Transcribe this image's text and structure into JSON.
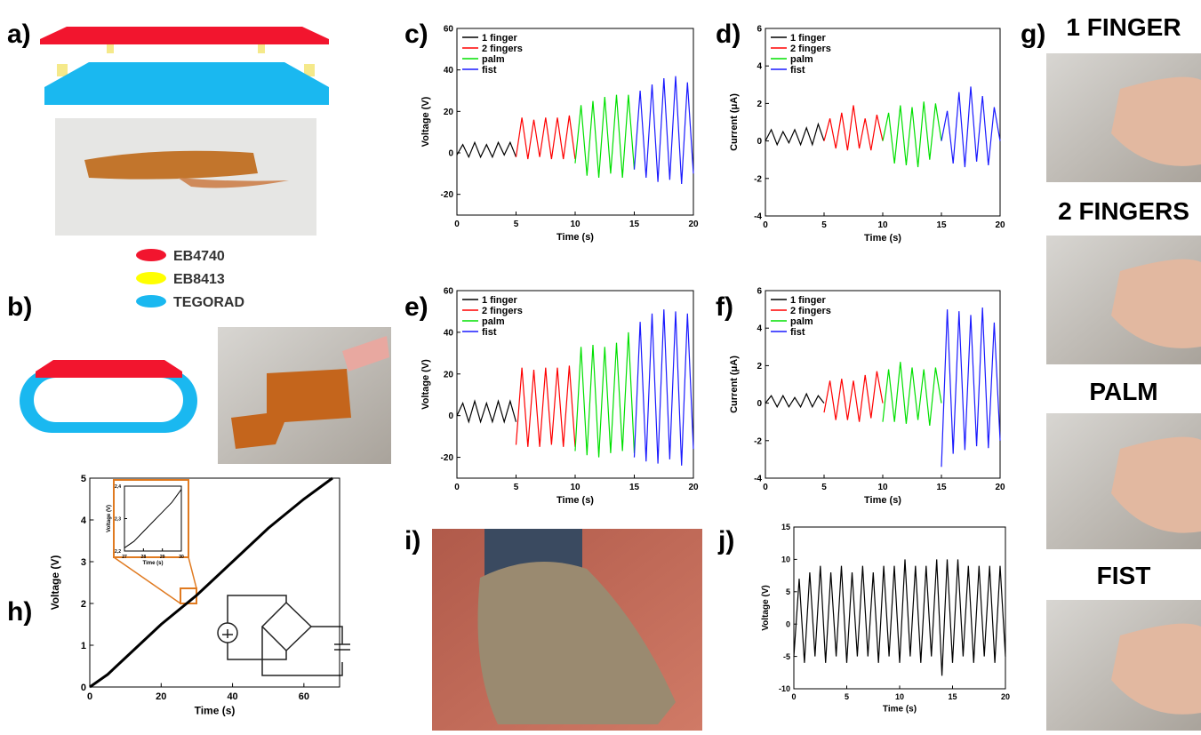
{
  "panels": {
    "a": "a)",
    "b": "b)",
    "g": "g)",
    "i": "i)"
  },
  "materials": [
    {
      "name": "EB4740",
      "color": "#f2152e"
    },
    {
      "name": "EB8413",
      "color": "#ffff00"
    },
    {
      "name": "TEGORAD",
      "color": "#1ab8f0"
    }
  ],
  "photo_labels": [
    "1 FINGER",
    "2 FINGERS",
    "PALM",
    "FIST"
  ],
  "chart_data": [
    {
      "type": "line",
      "panel": "c)",
      "xlabel": "Time (s)",
      "ylabel": "Voltage (V)",
      "xlim": [
        0,
        20
      ],
      "ylim": [
        -30,
        60
      ],
      "xticks": [
        0,
        5,
        10,
        15,
        20
      ],
      "yticks": [
        -20,
        0,
        20,
        40,
        60
      ],
      "legend": "upper left",
      "series": [
        {
          "name": "1 finger",
          "color": "#000000",
          "x": [
            0,
            0.5,
            1,
            1.5,
            2,
            2.5,
            3,
            3.5,
            4,
            4.5,
            5
          ],
          "values": [
            -1,
            4,
            -2,
            5,
            -2,
            4,
            -2,
            5,
            -1,
            5,
            -2
          ]
        },
        {
          "name": "2 fingers",
          "color": "#ff0000",
          "x": [
            5,
            5.5,
            6,
            6.5,
            7,
            7.5,
            8,
            8.5,
            9,
            9.5,
            10
          ],
          "values": [
            -2,
            17,
            -3,
            16,
            -2,
            17,
            -3,
            17,
            -3,
            18,
            -3
          ]
        },
        {
          "name": "palm",
          "color": "#00e000",
          "x": [
            10,
            10.5,
            11,
            11.5,
            12,
            12.5,
            13,
            13.5,
            14,
            14.5,
            15
          ],
          "values": [
            -5,
            23,
            -11,
            25,
            -12,
            27,
            -10,
            28,
            -12,
            28,
            -8
          ]
        },
        {
          "name": "fist",
          "color": "#1a1aff",
          "x": [
            15,
            15.5,
            16,
            16.5,
            17,
            17.5,
            18,
            18.5,
            19,
            19.5,
            20
          ],
          "values": [
            -8,
            30,
            -12,
            33,
            -14,
            36,
            -13,
            37,
            -15,
            34,
            -10
          ]
        }
      ]
    },
    {
      "type": "line",
      "panel": "d)",
      "xlabel": "Time (s)",
      "ylabel": "Current (μA)",
      "xlim": [
        0,
        20
      ],
      "ylim": [
        -4,
        6
      ],
      "xticks": [
        0,
        5,
        10,
        15,
        20
      ],
      "yticks": [
        -4,
        -2,
        0,
        2,
        4,
        6
      ],
      "legend": "upper left",
      "series": [
        {
          "name": "1 finger",
          "color": "#000000",
          "x": [
            0,
            0.5,
            1,
            1.5,
            2,
            2.5,
            3,
            3.5,
            4,
            4.5,
            5
          ],
          "values": [
            0,
            0.6,
            -0.2,
            0.5,
            -0.1,
            0.6,
            -0.2,
            0.7,
            -0.2,
            0.9,
            0
          ]
        },
        {
          "name": "2 fingers",
          "color": "#ff0000",
          "x": [
            5,
            5.5,
            6,
            6.5,
            7,
            7.5,
            8,
            8.5,
            9,
            9.5,
            10
          ],
          "values": [
            0,
            1.2,
            -0.4,
            1.5,
            -0.5,
            1.9,
            -0.4,
            1.2,
            -0.5,
            1.4,
            0
          ]
        },
        {
          "name": "palm",
          "color": "#00e000",
          "x": [
            10,
            10.5,
            11,
            11.5,
            12,
            12.5,
            13,
            13.5,
            14,
            14.5,
            15
          ],
          "values": [
            0,
            1.5,
            -1.2,
            1.9,
            -1.3,
            1.8,
            -1.4,
            2.1,
            -1,
            2,
            0
          ]
        },
        {
          "name": "fist",
          "color": "#1a1aff",
          "x": [
            15,
            15.5,
            16,
            16.5,
            17,
            17.5,
            18,
            18.5,
            19,
            19.5,
            20
          ],
          "values": [
            0,
            1.6,
            -1.2,
            2.6,
            -1.4,
            2.9,
            -1.1,
            2.4,
            -1.3,
            1.8,
            0
          ]
        }
      ]
    },
    {
      "type": "line",
      "panel": "e)",
      "xlabel": "Time (s)",
      "ylabel": "Voltage (V)",
      "xlim": [
        0,
        20
      ],
      "ylim": [
        -30,
        60
      ],
      "xticks": [
        0,
        5,
        10,
        15,
        20
      ],
      "yticks": [
        -20,
        0,
        20,
        40,
        60
      ],
      "legend": "upper left",
      "series": [
        {
          "name": "1 finger",
          "color": "#000000",
          "x": [
            0,
            0.5,
            1,
            1.5,
            2,
            2.5,
            3,
            3.5,
            4,
            4.5,
            5
          ],
          "values": [
            0,
            6,
            -3,
            7,
            -3,
            6,
            -3,
            7,
            -3,
            7,
            -3
          ]
        },
        {
          "name": "2 fingers",
          "color": "#ff0000",
          "x": [
            5,
            5.5,
            6,
            6.5,
            7,
            7.5,
            8,
            8.5,
            9,
            9.5,
            10
          ],
          "values": [
            -14,
            23,
            -15,
            22,
            -15,
            23,
            -14,
            23,
            -15,
            24,
            -15
          ]
        },
        {
          "name": "palm",
          "color": "#00e000",
          "x": [
            10,
            10.5,
            11,
            11.5,
            12,
            12.5,
            13,
            13.5,
            14,
            14.5,
            15
          ],
          "values": [
            -17,
            33,
            -19,
            34,
            -20,
            33,
            -18,
            35,
            -17,
            40,
            -18
          ]
        },
        {
          "name": "fist",
          "color": "#1a1aff",
          "x": [
            15,
            15.5,
            16,
            16.5,
            17,
            17.5,
            18,
            18.5,
            19,
            19.5,
            20
          ],
          "values": [
            -20,
            45,
            -22,
            49,
            -23,
            51,
            -21,
            50,
            -24,
            49,
            -16
          ]
        }
      ]
    },
    {
      "type": "line",
      "panel": "f)",
      "xlabel": "Time (s)",
      "ylabel": "Current (μA)",
      "xlim": [
        0,
        20
      ],
      "ylim": [
        -4,
        6
      ],
      "xticks": [
        0,
        5,
        10,
        15,
        20
      ],
      "yticks": [
        -4,
        -2,
        0,
        2,
        4,
        6
      ],
      "legend": "upper left",
      "series": [
        {
          "name": "1 finger",
          "color": "#000000",
          "x": [
            0,
            0.5,
            1,
            1.5,
            2,
            2.5,
            3,
            3.5,
            4,
            4.5,
            5
          ],
          "values": [
            0,
            0.4,
            -0.2,
            0.4,
            -0.2,
            0.3,
            -0.2,
            0.5,
            -0.2,
            0.4,
            0
          ]
        },
        {
          "name": "2 fingers",
          "color": "#ff0000",
          "x": [
            5,
            5.5,
            6,
            6.5,
            7,
            7.5,
            8,
            8.5,
            9,
            9.5,
            10
          ],
          "values": [
            -0.5,
            1.2,
            -0.9,
            1.3,
            -0.9,
            1.2,
            -1,
            1.5,
            -0.8,
            1.7,
            0
          ]
        },
        {
          "name": "palm",
          "color": "#00e000",
          "x": [
            10,
            10.5,
            11,
            11.5,
            12,
            12.5,
            13,
            13.5,
            14,
            14.5,
            15
          ],
          "values": [
            -1,
            1.8,
            -1,
            2.2,
            -1.1,
            1.9,
            -0.9,
            1.8,
            -1.2,
            1.9,
            0
          ]
        },
        {
          "name": "fist",
          "color": "#1a1aff",
          "x": [
            15,
            15.5,
            16,
            16.5,
            17,
            17.5,
            18,
            18.5,
            19,
            19.5,
            20
          ],
          "values": [
            -3.4,
            5,
            -2.7,
            4.9,
            -2.5,
            4.7,
            -2.3,
            5.1,
            -2.4,
            4.3,
            -2
          ]
        }
      ]
    },
    {
      "type": "line",
      "panel": "h)",
      "xlabel": "Time (s)",
      "ylabel": "Voltage (V)",
      "xlim": [
        0,
        70
      ],
      "ylim": [
        0,
        5
      ],
      "xticks": [
        0,
        20,
        40,
        60
      ],
      "yticks": [
        0,
        1,
        2,
        3,
        4,
        5
      ],
      "series": [
        {
          "color": "#000000",
          "x": [
            0,
            5,
            10,
            20,
            30,
            40,
            50,
            60,
            68
          ],
          "values": [
            0,
            0.3,
            0.7,
            1.5,
            2.2,
            3,
            3.8,
            4.5,
            5
          ]
        }
      ]
    },
    {
      "type": "line",
      "xlabel": "Time (s)",
      "ylabel": "Voltage (V)",
      "xlim": [
        27,
        30
      ],
      "ylim": [
        2.2,
        2.4
      ],
      "xticks": [
        27,
        28,
        29,
        30
      ],
      "yticks": [
        {
          "value": 2.2,
          "label": "2,2"
        },
        {
          "value": 2.3,
          "label": "2,3"
        },
        {
          "value": 2.4,
          "label": "2,4"
        }
      ],
      "series": [
        {
          "color": "#000000",
          "x": [
            27,
            27.5,
            28,
            28.5,
            29,
            29.5,
            30
          ],
          "values": [
            2.21,
            2.23,
            2.26,
            2.29,
            2.32,
            2.35,
            2.39
          ]
        }
      ]
    },
    {
      "type": "line",
      "panel": "j)",
      "xlabel": "Time (s)",
      "ylabel": "Voltage (V)",
      "xlim": [
        0,
        20
      ],
      "ylim": [
        -10,
        15
      ],
      "xticks": [
        0,
        5,
        10,
        15,
        20
      ],
      "yticks": [
        -10,
        -5,
        0,
        5,
        10,
        15
      ],
      "series": [
        {
          "color": "#000000",
          "x": [
            0,
            0.5,
            1,
            1.5,
            2,
            2.5,
            3,
            3.5,
            4,
            4.5,
            5,
            5.5,
            6,
            6.5,
            7,
            7.5,
            8,
            8.5,
            9,
            9.5,
            10,
            10.5,
            11,
            11.5,
            12,
            12.5,
            13,
            13.5,
            14,
            14.5,
            15,
            15.5,
            16,
            16.5,
            17,
            17.5,
            18,
            18.5,
            19,
            19.5,
            20
          ],
          "values": [
            -5,
            7,
            -6,
            8,
            -5,
            9,
            -6,
            8,
            -5,
            9,
            -6,
            8,
            -5,
            9,
            -5,
            8,
            -6,
            9,
            -5,
            9,
            -6,
            10,
            -5,
            9,
            -6,
            9,
            -5,
            10,
            -8,
            10,
            -6,
            10,
            -5,
            9,
            -6,
            9,
            -5,
            9,
            -6,
            9,
            -5
          ]
        }
      ]
    }
  ]
}
